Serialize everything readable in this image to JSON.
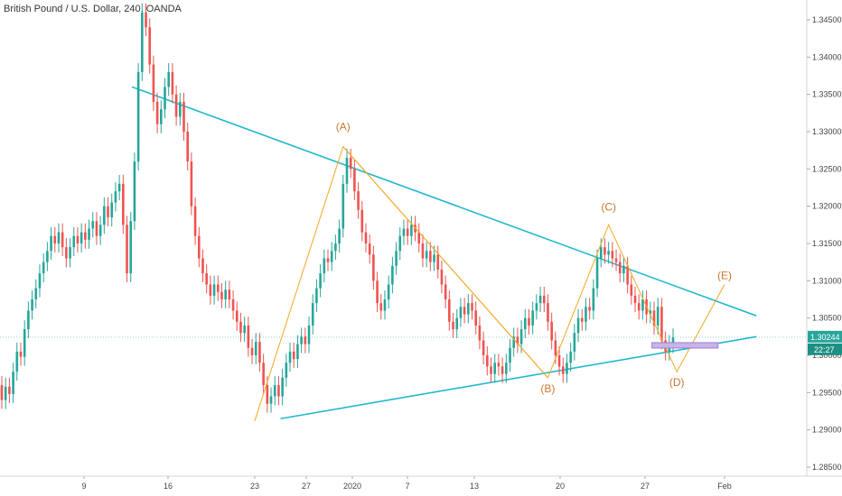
{
  "chart_data": {
    "type": "candlestick",
    "title": "British Pound / U.S. Dollar, 240, OANDA",
    "colors": {
      "up": "#26a69a",
      "down": "#ef5350",
      "trendline": "#22b8cf",
      "wave": "#f5a623",
      "wave_label": "#c8782c",
      "box": "#c8b4e6",
      "price_tag": "#26a69a"
    },
    "y_axis": {
      "ticks": [
        "1.34500",
        "1.34000",
        "1.33500",
        "1.33000",
        "1.32500",
        "1.32000",
        "1.31500",
        "1.31000",
        "1.30500",
        "1.30000",
        "1.29500",
        "1.29000",
        "1.28500"
      ],
      "range": [
        1.2825,
        1.348
      ],
      "side": "right"
    },
    "x_axis": {
      "labels": [
        "9",
        "16",
        "23",
        "27",
        "2020",
        "7",
        "13",
        "20",
        "27",
        "Feb"
      ]
    },
    "last_price": "1.30244",
    "countdown": "22:27",
    "wave_labels": [
      "(A)",
      "(B)",
      "(C)",
      "(D)",
      "(E)"
    ],
    "trendlines": {
      "upper": {
        "from": [
          "Dec 13",
          1.336
        ],
        "to": [
          "Feb 03",
          1.3053
        ]
      },
      "lower": {
        "from": [
          "Dec 25",
          1.2915
        ],
        "to": [
          "Feb 03",
          1.3025
        ]
      }
    },
    "wave_path": [
      [
        "Dec 23",
        1.2912
      ],
      [
        "Dec 31",
        1.328
      ],
      [
        "Jan 19",
        1.297
      ],
      [
        "Jan 24",
        1.3175
      ],
      [
        "Jan 29",
        1.2978
      ],
      [
        "Feb 01",
        1.3095
      ]
    ],
    "box": {
      "from": [
        "Jan 28",
        1.3017
      ],
      "to": [
        "Jan 30",
        1.3011
      ]
    },
    "candles": [
      {
        "o": 1.296,
        "c": 1.294
      },
      {
        "o": 1.294,
        "c": 1.2958
      },
      {
        "o": 1.2958,
        "c": 1.2948
      },
      {
        "o": 1.2948,
        "c": 1.2978
      },
      {
        "o": 1.2978,
        "c": 1.3005
      },
      {
        "o": 1.3005,
        "c": 1.2998
      },
      {
        "o": 1.2998,
        "c": 1.3035
      },
      {
        "o": 1.3035,
        "c": 1.306
      },
      {
        "o": 1.306,
        "c": 1.3075
      },
      {
        "o": 1.3075,
        "c": 1.309
      },
      {
        "o": 1.309,
        "c": 1.311
      },
      {
        "o": 1.311,
        "c": 1.3125
      },
      {
        "o": 1.3125,
        "c": 1.314
      },
      {
        "o": 1.314,
        "c": 1.316
      },
      {
        "o": 1.316,
        "c": 1.315
      },
      {
        "o": 1.315,
        "c": 1.3165
      },
      {
        "o": 1.3165,
        "c": 1.3145
      },
      {
        "o": 1.3145,
        "c": 1.313
      },
      {
        "o": 1.313,
        "c": 1.3145
      },
      {
        "o": 1.3145,
        "c": 1.316
      },
      {
        "o": 1.316,
        "c": 1.315
      },
      {
        "o": 1.315,
        "c": 1.3165
      },
      {
        "o": 1.3165,
        "c": 1.3155
      },
      {
        "o": 1.3155,
        "c": 1.317
      },
      {
        "o": 1.317,
        "c": 1.318
      },
      {
        "o": 1.318,
        "c": 1.316
      },
      {
        "o": 1.316,
        "c": 1.3175
      },
      {
        "o": 1.3175,
        "c": 1.32
      },
      {
        "o": 1.32,
        "c": 1.3185
      },
      {
        "o": 1.3185,
        "c": 1.3205
      },
      {
        "o": 1.3205,
        "c": 1.322
      },
      {
        "o": 1.322,
        "c": 1.323
      },
      {
        "o": 1.323,
        "c": 1.3175
      },
      {
        "o": 1.3175,
        "c": 1.311
      },
      {
        "o": 1.311,
        "c": 1.318
      },
      {
        "o": 1.318,
        "c": 1.326
      },
      {
        "o": 1.326,
        "c": 1.338
      },
      {
        "o": 1.338,
        "c": 1.346
      },
      {
        "o": 1.346,
        "c": 1.344
      },
      {
        "o": 1.344,
        "c": 1.339
      },
      {
        "o": 1.339,
        "c": 1.334
      },
      {
        "o": 1.334,
        "c": 1.331
      },
      {
        "o": 1.331,
        "c": 1.333
      },
      {
        "o": 1.333,
        "c": 1.336
      },
      {
        "o": 1.336,
        "c": 1.338
      },
      {
        "o": 1.338,
        "c": 1.335
      },
      {
        "o": 1.335,
        "c": 1.332
      },
      {
        "o": 1.332,
        "c": 1.334
      },
      {
        "o": 1.334,
        "c": 1.33
      },
      {
        "o": 1.33,
        "c": 1.326
      },
      {
        "o": 1.326,
        "c": 1.32
      },
      {
        "o": 1.32,
        "c": 1.316
      },
      {
        "o": 1.316,
        "c": 1.313
      },
      {
        "o": 1.313,
        "c": 1.311
      },
      {
        "o": 1.311,
        "c": 1.3095
      },
      {
        "o": 1.3095,
        "c": 1.308
      },
      {
        "o": 1.308,
        "c": 1.3095
      },
      {
        "o": 1.3095,
        "c": 1.3085
      },
      {
        "o": 1.3085,
        "c": 1.3075
      },
      {
        "o": 1.3075,
        "c": 1.3088
      },
      {
        "o": 1.3088,
        "c": 1.3075
      },
      {
        "o": 1.3075,
        "c": 1.306
      },
      {
        "o": 1.306,
        "c": 1.3045
      },
      {
        "o": 1.3045,
        "c": 1.303
      },
      {
        "o": 1.303,
        "c": 1.304
      },
      {
        "o": 1.304,
        "c": 1.301
      },
      {
        "o": 1.301,
        "c": 1.3
      },
      {
        "o": 1.3,
        "c": 1.3018
      },
      {
        "o": 1.3018,
        "c": 1.299
      },
      {
        "o": 1.299,
        "c": 1.296
      },
      {
        "o": 1.296,
        "c": 1.2935
      },
      {
        "o": 1.2935,
        "c": 1.2945
      },
      {
        "o": 1.2945,
        "c": 1.296
      },
      {
        "o": 1.296,
        "c": 1.2945
      },
      {
        "o": 1.2945,
        "c": 1.297
      },
      {
        "o": 1.297,
        "c": 1.299
      },
      {
        "o": 1.299,
        "c": 1.3005
      },
      {
        "o": 1.3005,
        "c": 1.2995
      },
      {
        "o": 1.2995,
        "c": 1.3015
      },
      {
        "o": 1.3015,
        "c": 1.3025
      },
      {
        "o": 1.3025,
        "c": 1.3015
      },
      {
        "o": 1.3015,
        "c": 1.304
      },
      {
        "o": 1.304,
        "c": 1.307
      },
      {
        "o": 1.307,
        "c": 1.309
      },
      {
        "o": 1.309,
        "c": 1.311
      },
      {
        "o": 1.311,
        "c": 1.313
      },
      {
        "o": 1.313,
        "c": 1.3125
      },
      {
        "o": 1.3125,
        "c": 1.314
      },
      {
        "o": 1.314,
        "c": 1.315
      },
      {
        "o": 1.315,
        "c": 1.317
      },
      {
        "o": 1.317,
        "c": 1.323
      },
      {
        "o": 1.323,
        "c": 1.3265
      },
      {
        "o": 1.3265,
        "c": 1.325
      },
      {
        "o": 1.325,
        "c": 1.322
      },
      {
        "o": 1.322,
        "c": 1.3195
      },
      {
        "o": 1.3195,
        "c": 1.3165
      },
      {
        "o": 1.3165,
        "c": 1.315
      },
      {
        "o": 1.315,
        "c": 1.3135
      },
      {
        "o": 1.3135,
        "c": 1.31
      },
      {
        "o": 1.31,
        "c": 1.307
      },
      {
        "o": 1.307,
        "c": 1.306
      },
      {
        "o": 1.306,
        "c": 1.3075
      },
      {
        "o": 1.3075,
        "c": 1.3095
      },
      {
        "o": 1.3095,
        "c": 1.312
      },
      {
        "o": 1.312,
        "c": 1.314
      },
      {
        "o": 1.314,
        "c": 1.316
      },
      {
        "o": 1.316,
        "c": 1.317
      },
      {
        "o": 1.317,
        "c": 1.316
      },
      {
        "o": 1.316,
        "c": 1.3175
      },
      {
        "o": 1.3175,
        "c": 1.3165
      },
      {
        "o": 1.3165,
        "c": 1.315
      },
      {
        "o": 1.315,
        "c": 1.313
      },
      {
        "o": 1.313,
        "c": 1.314
      },
      {
        "o": 1.314,
        "c": 1.3125
      },
      {
        "o": 1.3125,
        "c": 1.3135
      },
      {
        "o": 1.3135,
        "c": 1.3115
      },
      {
        "o": 1.3115,
        "c": 1.3095
      },
      {
        "o": 1.3095,
        "c": 1.3075
      },
      {
        "o": 1.3075,
        "c": 1.3045
      },
      {
        "o": 1.3045,
        "c": 1.3035
      },
      {
        "o": 1.3035,
        "c": 1.305
      },
      {
        "o": 1.305,
        "c": 1.3065
      },
      {
        "o": 1.3065,
        "c": 1.3055
      },
      {
        "o": 1.3055,
        "c": 1.307
      },
      {
        "o": 1.307,
        "c": 1.306
      },
      {
        "o": 1.306,
        "c": 1.304
      },
      {
        "o": 1.304,
        "c": 1.302
      },
      {
        "o": 1.302,
        "c": 1.3
      },
      {
        "o": 1.3,
        "c": 1.2985
      },
      {
        "o": 1.2985,
        "c": 1.2975
      },
      {
        "o": 1.2975,
        "c": 1.299
      },
      {
        "o": 1.299,
        "c": 1.2985
      },
      {
        "o": 1.2985,
        "c": 1.2975
      },
      {
        "o": 1.2975,
        "c": 1.299
      },
      {
        "o": 1.299,
        "c": 1.301
      },
      {
        "o": 1.301,
        "c": 1.3025
      },
      {
        "o": 1.3025,
        "c": 1.3015
      },
      {
        "o": 1.3015,
        "c": 1.3035
      },
      {
        "o": 1.3035,
        "c": 1.305
      },
      {
        "o": 1.305,
        "c": 1.304
      },
      {
        "o": 1.304,
        "c": 1.306
      },
      {
        "o": 1.306,
        "c": 1.307
      },
      {
        "o": 1.307,
        "c": 1.308
      },
      {
        "o": 1.308,
        "c": 1.307
      },
      {
        "o": 1.307,
        "c": 1.3045
      },
      {
        "o": 1.3045,
        "c": 1.302
      },
      {
        "o": 1.302,
        "c": 1.3
      },
      {
        "o": 1.3,
        "c": 1.2985
      },
      {
        "o": 1.2985,
        "c": 1.2975
      },
      {
        "o": 1.2975,
        "c": 1.299
      },
      {
        "o": 1.299,
        "c": 1.3005
      },
      {
        "o": 1.3005,
        "c": 1.303
      },
      {
        "o": 1.303,
        "c": 1.305
      },
      {
        "o": 1.305,
        "c": 1.3045
      },
      {
        "o": 1.3045,
        "c": 1.3065
      },
      {
        "o": 1.3065,
        "c": 1.306
      },
      {
        "o": 1.306,
        "c": 1.309
      },
      {
        "o": 1.309,
        "c": 1.313
      },
      {
        "o": 1.313,
        "c": 1.3145
      },
      {
        "o": 1.3145,
        "c": 1.3135
      },
      {
        "o": 1.3135,
        "c": 1.314
      },
      {
        "o": 1.314,
        "c": 1.313
      },
      {
        "o": 1.313,
        "c": 1.3125
      },
      {
        "o": 1.3125,
        "c": 1.311
      },
      {
        "o": 1.311,
        "c": 1.312
      },
      {
        "o": 1.312,
        "c": 1.3095
      },
      {
        "o": 1.3095,
        "c": 1.308
      },
      {
        "o": 1.308,
        "c": 1.307
      },
      {
        "o": 1.307,
        "c": 1.306
      },
      {
        "o": 1.306,
        "c": 1.3075
      },
      {
        "o": 1.3075,
        "c": 1.3055
      },
      {
        "o": 1.3055,
        "c": 1.306
      },
      {
        "o": 1.306,
        "c": 1.304
      },
      {
        "o": 1.304,
        "c": 1.3065
      },
      {
        "o": 1.3065,
        "c": 1.302
      },
      {
        "o": 1.302,
        "c": 1.3005
      },
      {
        "o": 1.3005,
        "c": 1.3015
      },
      {
        "o": 1.3015,
        "c": 1.3024
      }
    ]
  }
}
